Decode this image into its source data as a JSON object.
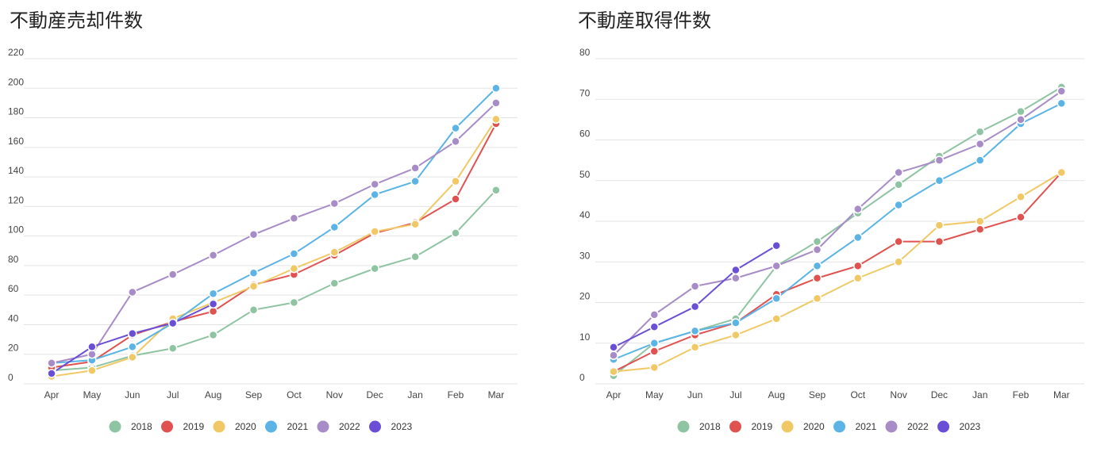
{
  "colors": {
    "2018": "#8fc4a3",
    "2019": "#e0524f",
    "2020": "#f0c865",
    "2021": "#5bb4e5",
    "2022": "#a78cc7",
    "2023": "#6a4fd6"
  },
  "chart_data": [
    {
      "type": "line",
      "title": "不動産売却件数",
      "categories": [
        "Apr",
        "May",
        "Jun",
        "Jul",
        "Aug",
        "Sep",
        "Oct",
        "Nov",
        "Dec",
        "Jan",
        "Feb",
        "Mar"
      ],
      "ylim": [
        0,
        220
      ],
      "yticks": [
        0,
        20,
        40,
        60,
        80,
        100,
        120,
        140,
        160,
        180,
        200,
        220
      ],
      "grid": true,
      "legend": "bottom",
      "series": [
        {
          "name": "2018",
          "values": [
            9,
            11,
            19,
            24,
            33,
            50,
            55,
            68,
            78,
            86,
            102,
            131
          ]
        },
        {
          "name": "2019",
          "values": [
            11,
            15,
            33,
            42,
            49,
            67,
            74,
            87,
            102,
            109,
            125,
            176
          ]
        },
        {
          "name": "2020",
          "values": [
            5,
            9,
            18,
            44,
            55,
            66,
            78,
            89,
            103,
            108,
            137,
            179
          ]
        },
        {
          "name": "2021",
          "values": [
            14,
            16,
            25,
            41,
            61,
            75,
            88,
            106,
            128,
            137,
            173,
            200
          ]
        },
        {
          "name": "2022",
          "values": [
            14,
            20,
            62,
            74,
            87,
            101,
            112,
            122,
            135,
            146,
            164,
            190
          ]
        },
        {
          "name": "2023",
          "values": [
            7,
            25,
            34,
            41,
            54,
            null,
            null,
            null,
            null,
            null,
            null,
            null
          ]
        }
      ]
    },
    {
      "type": "line",
      "title": "不動産取得件数",
      "categories": [
        "Apr",
        "May",
        "Jun",
        "Jul",
        "Aug",
        "Sep",
        "Oct",
        "Nov",
        "Dec",
        "Jan",
        "Feb",
        "Mar"
      ],
      "ylim": [
        0,
        80
      ],
      "yticks": [
        0,
        10,
        20,
        30,
        40,
        50,
        60,
        70,
        80
      ],
      "grid": true,
      "legend": "bottom",
      "series": [
        {
          "name": "2018",
          "values": [
            2,
            10,
            13,
            16,
            29,
            35,
            42,
            49,
            56,
            62,
            67,
            73
          ]
        },
        {
          "name": "2019",
          "values": [
            3,
            8,
            12,
            15,
            22,
            26,
            29,
            35,
            35,
            38,
            41,
            52
          ]
        },
        {
          "name": "2020",
          "values": [
            3,
            4,
            9,
            12,
            16,
            21,
            26,
            30,
            39,
            40,
            46,
            52
          ]
        },
        {
          "name": "2021",
          "values": [
            6,
            10,
            13,
            15,
            21,
            29,
            36,
            44,
            50,
            55,
            64,
            69
          ]
        },
        {
          "name": "2022",
          "values": [
            7,
            17,
            24,
            26,
            29,
            33,
            43,
            52,
            55,
            59,
            65,
            72
          ]
        },
        {
          "name": "2023",
          "values": [
            9,
            14,
            19,
            28,
            34,
            null,
            null,
            null,
            null,
            null,
            null,
            null
          ]
        }
      ]
    }
  ]
}
